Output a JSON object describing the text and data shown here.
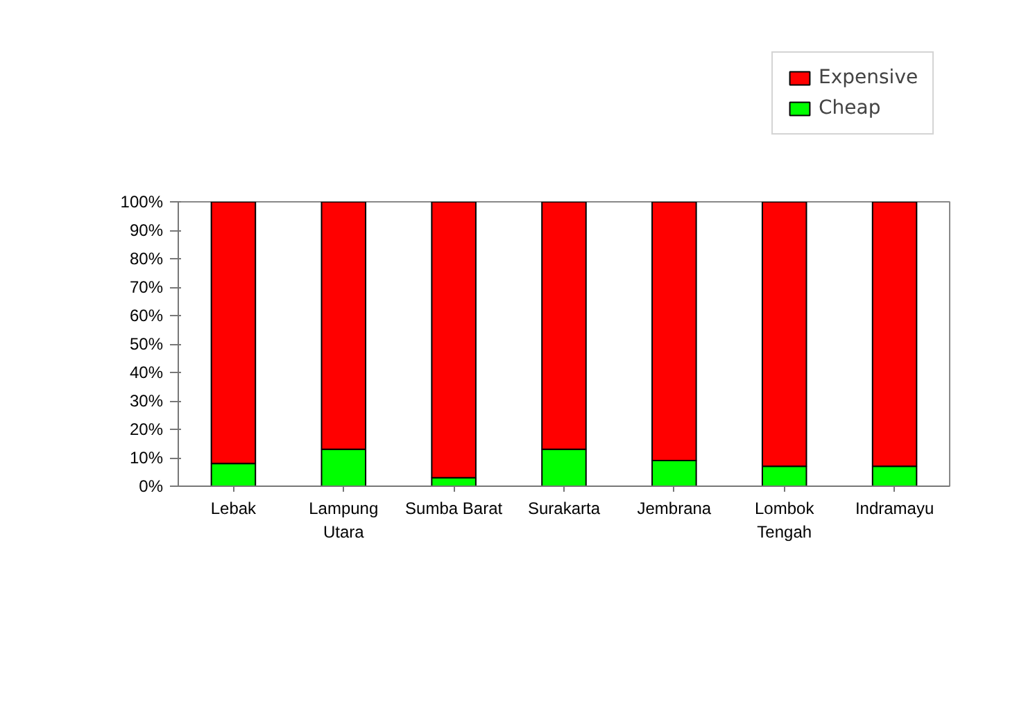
{
  "chart_data": {
    "type": "bar",
    "stacked": true,
    "categories": [
      "Lebak",
      "Lampung\nUtara",
      "Sumba Barat",
      "Surakarta",
      "Jembrana",
      "Lombok\nTengah",
      "Indramayu"
    ],
    "series": [
      {
        "name": "Cheap",
        "color": "#00ff00",
        "values": [
          8,
          13,
          3,
          13,
          9,
          7,
          7
        ]
      },
      {
        "name": "Expensive",
        "color": "#ff0000",
        "values": [
          92,
          87,
          97,
          87,
          91,
          93,
          93
        ]
      }
    ],
    "ylim": [
      0,
      100
    ],
    "yticks": [
      {
        "value": 0,
        "label": "0%"
      },
      {
        "value": 10,
        "label": "10%"
      },
      {
        "value": 20,
        "label": "20%"
      },
      {
        "value": 30,
        "label": "30%"
      },
      {
        "value": 40,
        "label": "40%"
      },
      {
        "value": 50,
        "label": "50%"
      },
      {
        "value": 60,
        "label": "60%"
      },
      {
        "value": 70,
        "label": "70%"
      },
      {
        "value": 80,
        "label": "80%"
      },
      {
        "value": 90,
        "label": "90%"
      },
      {
        "value": 100,
        "label": "100%"
      }
    ],
    "grid": false,
    "legend": "top right"
  }
}
